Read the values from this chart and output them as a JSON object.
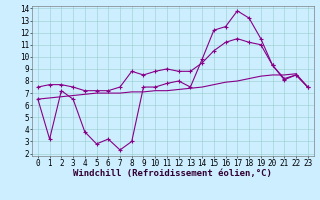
{
  "xlabel": "Windchill (Refroidissement éolien,°C)",
  "bg_color": "#cceeff",
  "line_color": "#880088",
  "xlim": [
    -0.5,
    23.5
  ],
  "ylim": [
    1.8,
    14.2
  ],
  "xticks": [
    0,
    1,
    2,
    3,
    4,
    5,
    6,
    7,
    8,
    9,
    10,
    11,
    12,
    13,
    14,
    15,
    16,
    17,
    18,
    19,
    20,
    21,
    22,
    23
  ],
  "yticks": [
    2,
    3,
    4,
    5,
    6,
    7,
    8,
    9,
    10,
    11,
    12,
    13,
    14
  ],
  "series1_x": [
    0,
    1,
    2,
    3,
    4,
    5,
    6,
    7,
    8,
    9,
    10,
    11,
    12,
    13,
    14,
    15,
    16,
    17,
    18,
    19,
    20,
    21,
    22,
    23
  ],
  "series1_y": [
    6.5,
    3.2,
    7.2,
    6.5,
    3.8,
    2.8,
    3.2,
    2.3,
    3.0,
    7.5,
    7.5,
    7.8,
    8.0,
    7.5,
    9.8,
    12.2,
    12.5,
    13.8,
    13.2,
    11.5,
    9.3,
    8.1,
    8.5,
    7.5
  ],
  "series2_x": [
    0,
    1,
    2,
    3,
    4,
    5,
    6,
    7,
    8,
    9,
    10,
    11,
    12,
    13,
    14,
    15,
    16,
    17,
    18,
    19,
    20,
    21,
    22,
    23
  ],
  "series2_y": [
    7.5,
    7.7,
    7.7,
    7.5,
    7.2,
    7.2,
    7.2,
    7.5,
    8.8,
    8.5,
    8.8,
    9.0,
    8.8,
    8.8,
    9.5,
    10.5,
    11.2,
    11.5,
    11.2,
    11.0,
    9.3,
    8.2,
    8.5,
    7.5
  ],
  "series3_x": [
    0,
    1,
    2,
    3,
    4,
    5,
    6,
    7,
    8,
    9,
    10,
    11,
    12,
    13,
    14,
    15,
    16,
    17,
    18,
    19,
    20,
    21,
    22,
    23
  ],
  "series3_y": [
    6.5,
    6.6,
    6.7,
    6.8,
    6.9,
    7.0,
    7.0,
    7.0,
    7.1,
    7.1,
    7.2,
    7.2,
    7.3,
    7.4,
    7.5,
    7.7,
    7.9,
    8.0,
    8.2,
    8.4,
    8.5,
    8.5,
    8.6,
    7.5
  ],
  "font_size_label": 6.5,
  "font_size_tick": 5.5,
  "marker": "+",
  "marker_size": 3,
  "linewidth": 0.8
}
